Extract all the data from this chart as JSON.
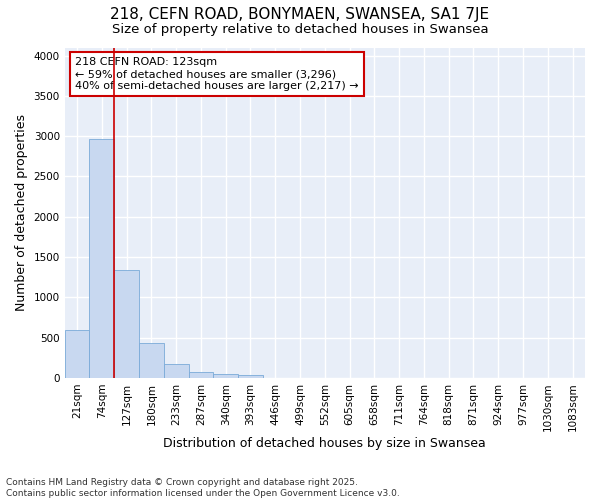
{
  "title1": "218, CEFN ROAD, BONYMAEN, SWANSEA, SA1 7JE",
  "title2": "Size of property relative to detached houses in Swansea",
  "xlabel": "Distribution of detached houses by size in Swansea",
  "ylabel": "Number of detached properties",
  "categories": [
    "21sqm",
    "74sqm",
    "127sqm",
    "180sqm",
    "233sqm",
    "287sqm",
    "340sqm",
    "393sqm",
    "446sqm",
    "499sqm",
    "552sqm",
    "605sqm",
    "658sqm",
    "711sqm",
    "764sqm",
    "818sqm",
    "871sqm",
    "924sqm",
    "977sqm",
    "1030sqm",
    "1083sqm"
  ],
  "values": [
    600,
    2970,
    1340,
    430,
    170,
    80,
    45,
    35,
    0,
    0,
    0,
    0,
    0,
    0,
    0,
    0,
    0,
    0,
    0,
    0,
    0
  ],
  "bar_color": "#c8d8f0",
  "bar_edge_color": "#7aaad8",
  "vline_color": "#cc0000",
  "annotation_text": "218 CEFN ROAD: 123sqm\n← 59% of detached houses are smaller (3,296)\n40% of semi-detached houses are larger (2,217) →",
  "annotation_box_color": "#cc0000",
  "ylim": [
    0,
    4100
  ],
  "yticks": [
    0,
    500,
    1000,
    1500,
    2000,
    2500,
    3000,
    3500,
    4000
  ],
  "footer1": "Contains HM Land Registry data © Crown copyright and database right 2025.",
  "footer2": "Contains public sector information licensed under the Open Government Licence v3.0.",
  "fig_bg_color": "#ffffff",
  "plot_bg_color": "#e8eef8",
  "grid_color": "#ffffff",
  "title_fontsize": 11,
  "subtitle_fontsize": 9.5,
  "axis_label_fontsize": 9,
  "tick_fontsize": 7.5,
  "footer_fontsize": 6.5
}
